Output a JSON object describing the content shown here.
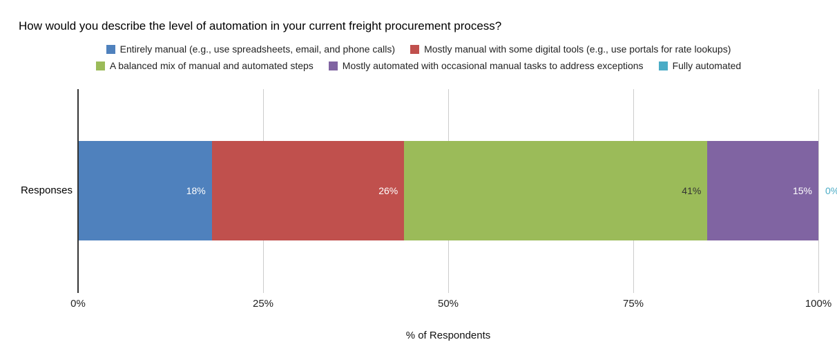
{
  "chart_data": {
    "type": "bar",
    "variant": "horizontal-stacked",
    "title": "How would you describe the level of automation in your current freight procurement process?",
    "xlabel": "% of Respondents",
    "ylabel": "",
    "categories": [
      "Responses"
    ],
    "series": [
      {
        "name": "Entirely manual (e.g., use spreadsheets, email, and phone calls)",
        "values": [
          18
        ],
        "color": "#4f81bd",
        "data_label": "18%",
        "label_color": "#ffffff",
        "label_outside": false
      },
      {
        "name": "Mostly manual with some digital tools (e.g., use portals for rate lookups)",
        "values": [
          26
        ],
        "color": "#c0504d",
        "data_label": "26%",
        "label_color": "#ffffff",
        "label_outside": false
      },
      {
        "name": "A balanced mix of manual and automated steps",
        "values": [
          41
        ],
        "color": "#9bbb59",
        "data_label": "41%",
        "label_color": "#333333",
        "label_outside": false
      },
      {
        "name": "Mostly automated with occasional manual tasks to address exceptions",
        "values": [
          15
        ],
        "color": "#8064a2",
        "data_label": "15%",
        "label_color": "#ffffff",
        "label_outside": false
      },
      {
        "name": "Fully automated",
        "values": [
          0
        ],
        "color": "#4bacc6",
        "data_label": "0%",
        "label_color": "#4bacc6",
        "label_outside": true
      }
    ],
    "x_ticks": [
      "0%",
      "25%",
      "50%",
      "75%",
      "100%"
    ],
    "xlim": [
      0,
      100
    ],
    "grid": "vertical",
    "gridline_color": "#cccccc",
    "axis_line_color": "#333333",
    "legend_position": "top",
    "legend_rows": [
      [
        0,
        1
      ],
      [
        2,
        3,
        4
      ]
    ]
  }
}
